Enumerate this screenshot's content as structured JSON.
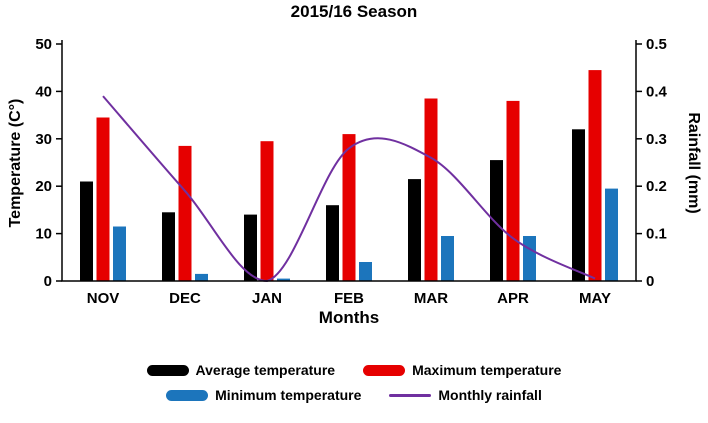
{
  "chart_data": {
    "type": "bar+line",
    "title": "2015/16 Season",
    "categories": [
      "NOV",
      "DEC",
      "JAN",
      "FEB",
      "MAR",
      "APR",
      "MAY"
    ],
    "series": [
      {
        "name": "Average temperature",
        "type": "bar",
        "axis": "left",
        "color": "#000000",
        "values": [
          21,
          14.5,
          14,
          16,
          21.5,
          25.5,
          32
        ]
      },
      {
        "name": "Maximum temperature",
        "type": "bar",
        "axis": "left",
        "color": "#e60000",
        "values": [
          34.5,
          28.5,
          29.5,
          31,
          38.5,
          38,
          44.5
        ]
      },
      {
        "name": "Minimum temperature",
        "type": "bar",
        "axis": "left",
        "color": "#1c75bc",
        "values": [
          11.5,
          1.5,
          0.5,
          4,
          9.5,
          9.5,
          19.5
        ]
      },
      {
        "name": "Monthly rainfall",
        "type": "line",
        "axis": "right",
        "color": "#7030a0",
        "values": [
          0.39,
          0.19,
          0,
          0.28,
          0.26,
          0.09,
          0.005
        ]
      }
    ],
    "xlabel": "Months",
    "ylabel_left": "Temperature (C°)",
    "ylabel_right": "Rainfall (mm)",
    "ylim_left": [
      0,
      50
    ],
    "ylim_right": [
      0,
      0.5
    ],
    "yticks_left": [
      0,
      10,
      20,
      30,
      40,
      50
    ],
    "yticks_right": [
      0,
      0.1,
      0.2,
      0.3,
      0.4,
      0.5
    ],
    "legend_position": "bottom",
    "grid": false
  }
}
